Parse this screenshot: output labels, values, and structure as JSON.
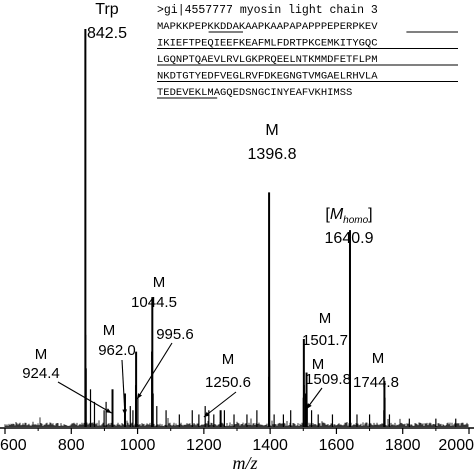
{
  "chart_data": {
    "type": "bar",
    "xlabel": "m/z",
    "xlim": [
      600,
      2000
    ],
    "x_ticks": [
      "600",
      "800",
      "1000",
      "1200",
      "1400",
      "1600",
      "1800",
      "2000"
    ],
    "ylim": [
      0,
      100
    ],
    "annotated_peaks": [
      {
        "x": 842.5,
        "y": 95,
        "label": "Trp",
        "value": "842.5"
      },
      {
        "x": 924.4,
        "y": 9,
        "label": "M",
        "value": "924.4"
      },
      {
        "x": 962.0,
        "y": 8,
        "label": "M",
        "value": "962.0"
      },
      {
        "x": 995.6,
        "y": 18,
        "label": "",
        "value": "995.6"
      },
      {
        "x": 1044.5,
        "y": 31,
        "label": "M",
        "value": "1044.5"
      },
      {
        "x": 1250.6,
        "y": 4,
        "label": "M",
        "value": "1250.6"
      },
      {
        "x": 1396.8,
        "y": 56,
        "label": "M",
        "value": "1396.8"
      },
      {
        "x": 1501.7,
        "y": 21,
        "label": "M",
        "value": "1501.7"
      },
      {
        "x": 1509.8,
        "y": 13,
        "label": "M",
        "value": "1509.8"
      },
      {
        "x": 1640.9,
        "y": 47,
        "label": "[M_homo]",
        "value": "1640.9"
      },
      {
        "x": 1744.8,
        "y": 11,
        "label": "M",
        "value": "1744.8"
      }
    ],
    "minor_peaks": [
      {
        "x": 842.0,
        "y": 60
      },
      {
        "x": 843.5,
        "y": 22
      },
      {
        "x": 845.0,
        "y": 14
      },
      {
        "x": 858,
        "y": 9
      },
      {
        "x": 870,
        "y": 6
      },
      {
        "x": 899,
        "y": 4
      },
      {
        "x": 905,
        "y": 6
      },
      {
        "x": 978,
        "y": 5
      },
      {
        "x": 986,
        "y": 4
      },
      {
        "x": 994,
        "y": 10
      },
      {
        "x": 1001,
        "y": 7
      },
      {
        "x": 1042.5,
        "y": 18
      },
      {
        "x": 1047,
        "y": 8
      },
      {
        "x": 1058,
        "y": 5
      },
      {
        "x": 1086,
        "y": 4
      },
      {
        "x": 1126,
        "y": 3
      },
      {
        "x": 1165,
        "y": 4
      },
      {
        "x": 1185,
        "y": 3
      },
      {
        "x": 1204,
        "y": 5
      },
      {
        "x": 1215,
        "y": 4
      },
      {
        "x": 1230,
        "y": 3
      },
      {
        "x": 1262,
        "y": 4
      },
      {
        "x": 1291,
        "y": 3
      },
      {
        "x": 1330,
        "y": 3
      },
      {
        "x": 1360,
        "y": 4
      },
      {
        "x": 1395.5,
        "y": 12
      },
      {
        "x": 1398.5,
        "y": 16
      },
      {
        "x": 1412,
        "y": 3
      },
      {
        "x": 1440,
        "y": 3
      },
      {
        "x": 1462,
        "y": 4
      },
      {
        "x": 1500,
        "y": 7
      },
      {
        "x": 1503,
        "y": 10
      },
      {
        "x": 1507,
        "y": 8
      },
      {
        "x": 1512,
        "y": 5
      },
      {
        "x": 1525,
        "y": 4
      },
      {
        "x": 1545,
        "y": 3
      },
      {
        "x": 1588,
        "y": 3
      },
      {
        "x": 1642,
        "y": 12
      },
      {
        "x": 1662,
        "y": 3
      },
      {
        "x": 1700,
        "y": 3
      },
      {
        "x": 1743,
        "y": 4
      },
      {
        "x": 1746.5,
        "y": 7
      },
      {
        "x": 1760,
        "y": 3
      },
      {
        "x": 1820,
        "y": 2
      },
      {
        "x": 1900,
        "y": 2
      },
      {
        "x": 1960,
        "y": 2
      }
    ]
  },
  "inset": {
    "title": ">gi|4557777 myosin light chain 3",
    "sequence_lines": [
      "MAPKKPEPKKDDAKAAPKAAPAPAPPPEPERPKEV",
      "IKIEFTPEQIEEFKEAFMLFDRTPKCEMKITYGQC",
      "LGQNPTQAEVLRVLGKPRQEELNTKMMDFETFLPM",
      "NKDTGTYEDFVEGLRVFDKEGNGTVMGAELRHVLA",
      "TEDEVEKLMAGQEDSNGCINYEAFVKHIMSS"
    ]
  }
}
